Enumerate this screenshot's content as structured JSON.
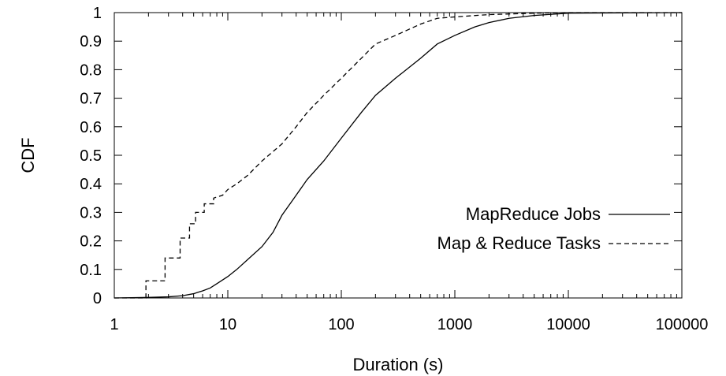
{
  "chart_data": {
    "type": "line",
    "xlabel": "Duration (s)",
    "ylabel": "CDF",
    "xscale": "log",
    "xlim": [
      1,
      100000
    ],
    "ylim": [
      0,
      1
    ],
    "x_ticks": [
      1,
      10,
      100,
      1000,
      10000,
      100000
    ],
    "x_tick_labels": [
      "1",
      "10",
      "100",
      "1000",
      "10000",
      "100000"
    ],
    "y_ticks": [
      0,
      0.1,
      0.2,
      0.3,
      0.4,
      0.5,
      0.6,
      0.7,
      0.8,
      0.9,
      1
    ],
    "y_tick_labels": [
      "0",
      "0.1",
      "0.2",
      "0.3",
      "0.4",
      "0.5",
      "0.6",
      "0.7",
      "0.8",
      "0.9",
      "1"
    ],
    "grid": false,
    "legend_position": "right",
    "series": [
      {
        "name": "MapReduce Jobs",
        "line_style": "solid",
        "color": "#000000",
        "points": [
          [
            1,
            0
          ],
          [
            2,
            0.002
          ],
          [
            3,
            0.004
          ],
          [
            4,
            0.008
          ],
          [
            5,
            0.015
          ],
          [
            6,
            0.025
          ],
          [
            7,
            0.035
          ],
          [
            8,
            0.05
          ],
          [
            10,
            0.075
          ],
          [
            12,
            0.1
          ],
          [
            15,
            0.135
          ],
          [
            20,
            0.18
          ],
          [
            25,
            0.23
          ],
          [
            30,
            0.29
          ],
          [
            40,
            0.36
          ],
          [
            50,
            0.415
          ],
          [
            70,
            0.48
          ],
          [
            100,
            0.56
          ],
          [
            150,
            0.65
          ],
          [
            200,
            0.71
          ],
          [
            300,
            0.77
          ],
          [
            500,
            0.84
          ],
          [
            700,
            0.89
          ],
          [
            1000,
            0.92
          ],
          [
            1500,
            0.95
          ],
          [
            2000,
            0.965
          ],
          [
            3000,
            0.98
          ],
          [
            5000,
            0.99
          ],
          [
            10000,
            0.998
          ],
          [
            100000,
            1
          ]
        ]
      },
      {
        "name": "Map & Reduce Tasks",
        "line_style": "dashed",
        "color": "#000000",
        "points": [
          [
            1,
            0
          ],
          [
            1.9,
            0
          ],
          [
            1.9,
            0.06
          ],
          [
            2.8,
            0.06
          ],
          [
            2.8,
            0.14
          ],
          [
            3.8,
            0.14
          ],
          [
            3.8,
            0.21
          ],
          [
            4.6,
            0.21
          ],
          [
            4.6,
            0.26
          ],
          [
            5.2,
            0.26
          ],
          [
            5.2,
            0.3
          ],
          [
            6.2,
            0.3
          ],
          [
            6.2,
            0.33
          ],
          [
            7.5,
            0.33
          ],
          [
            7.5,
            0.35
          ],
          [
            9,
            0.36
          ],
          [
            10,
            0.38
          ],
          [
            12,
            0.4
          ],
          [
            15,
            0.43
          ],
          [
            20,
            0.48
          ],
          [
            30,
            0.54
          ],
          [
            40,
            0.6
          ],
          [
            50,
            0.65
          ],
          [
            70,
            0.71
          ],
          [
            100,
            0.77
          ],
          [
            150,
            0.84
          ],
          [
            200,
            0.89
          ],
          [
            300,
            0.92
          ],
          [
            500,
            0.96
          ],
          [
            700,
            0.98
          ],
          [
            1000,
            0.985
          ],
          [
            2000,
            0.993
          ],
          [
            5000,
            0.998
          ],
          [
            10000,
            1
          ],
          [
            100000,
            1
          ]
        ]
      }
    ]
  }
}
